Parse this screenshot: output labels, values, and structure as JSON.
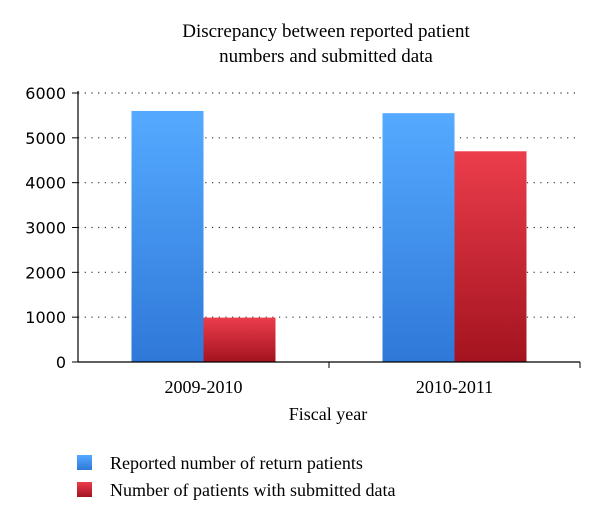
{
  "chart_data": {
    "type": "bar",
    "title_lines": [
      "Discrepancy between reported patient",
      "numbers and submitted data"
    ],
    "categories": [
      "2009-2010",
      "2010-2011"
    ],
    "series": [
      {
        "name": "Reported number of return patients",
        "values": [
          5600,
          5550
        ],
        "color": "#4a9ff0",
        "color_dark": "#2a6fd0"
      },
      {
        "name": "Number of patients with submitted data",
        "values": [
          990,
          4700
        ],
        "color": "#e23c4a",
        "color_dark": "#a0141f"
      }
    ],
    "xlabel": "Fiscal year",
    "ylabel": "",
    "ylim": [
      0,
      6000
    ],
    "yticks": [
      0,
      1000,
      2000,
      3000,
      4000,
      5000,
      6000
    ],
    "grid": true,
    "legend_position": "bottom-left"
  }
}
